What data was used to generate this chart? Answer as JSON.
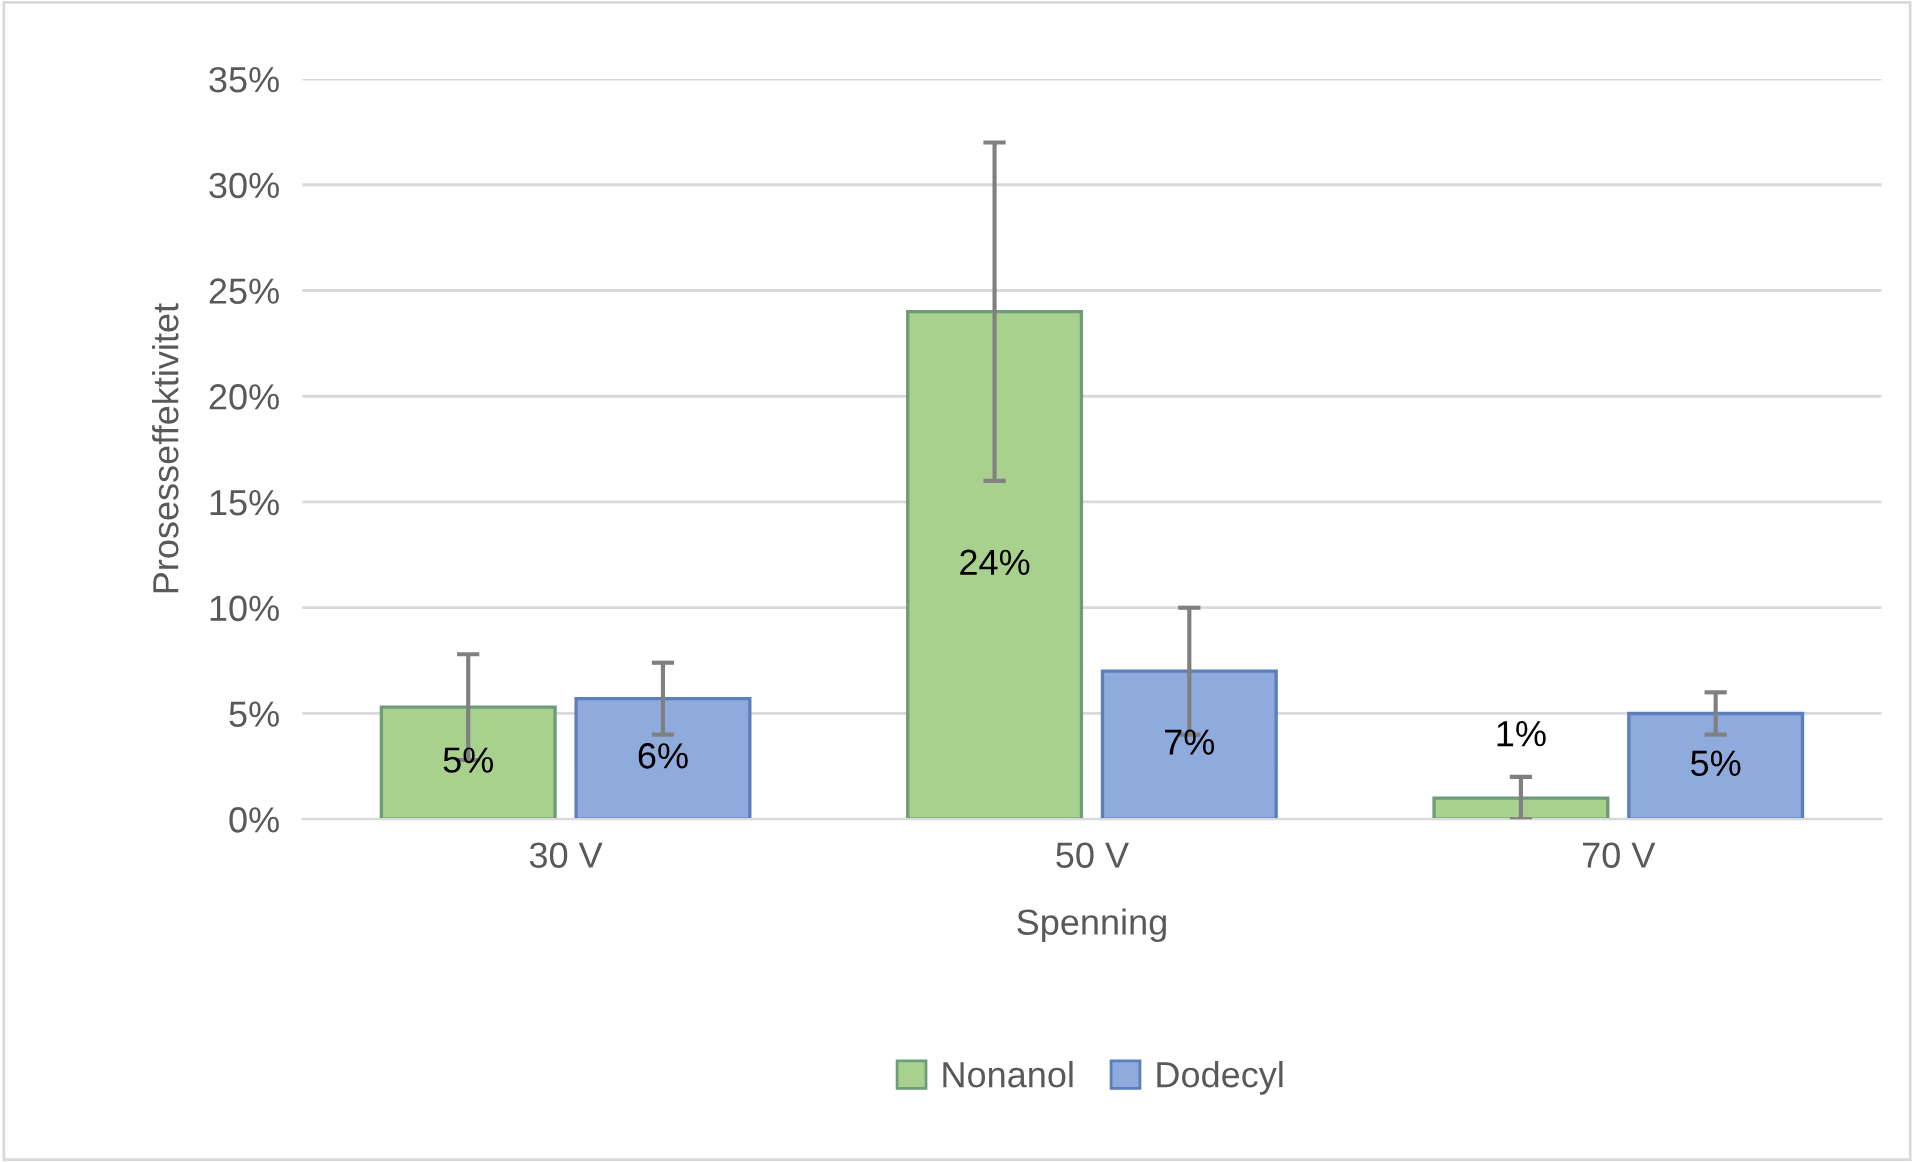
{
  "chart_data": {
    "type": "bar",
    "xlabel": "Spenning",
    "ylabel": "Prosesseffektivitet",
    "categories": [
      "30 V",
      "50 V",
      "70 V"
    ],
    "series": [
      {
        "name": "Nonanol",
        "color": "#a9d18e",
        "values": [
          5.3,
          24,
          1
        ],
        "errors": [
          2.5,
          8,
          1
        ],
        "value_labels": [
          "5%",
          "24%",
          "1%"
        ]
      },
      {
        "name": "Dodecyl",
        "color": "#8faadc",
        "values": [
          5.7,
          7,
          5
        ],
        "errors": [
          1.7,
          3,
          1
        ],
        "value_labels": [
          "6%",
          "7%",
          "5%"
        ]
      }
    ],
    "ylim": [
      0,
      35
    ],
    "yticks": [
      {
        "value": 0,
        "label": "0%"
      },
      {
        "value": 5,
        "label": "5%"
      },
      {
        "value": 10,
        "label": "10%"
      },
      {
        "value": 15,
        "label": "15%"
      },
      {
        "value": 20,
        "label": "20%"
      },
      {
        "value": 25,
        "label": "25%"
      },
      {
        "value": 30,
        "label": "30%"
      },
      {
        "value": 35,
        "label": "35%"
      }
    ],
    "grid": "y",
    "legend": "bottom"
  }
}
